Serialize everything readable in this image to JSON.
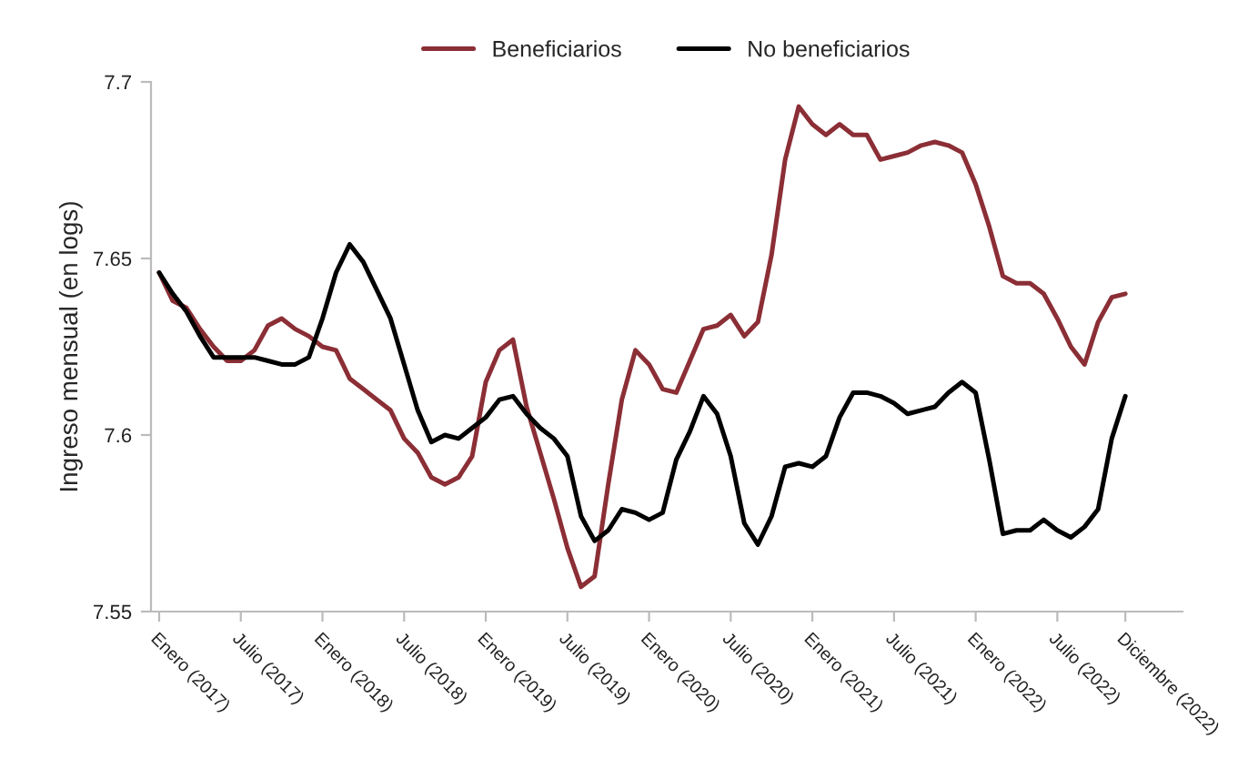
{
  "chart_data": {
    "type": "line",
    "ylabel": "Ingreso mensual (en logs)",
    "categories": [
      "Enero (2017)",
      null,
      null,
      null,
      null,
      null,
      "Julio (2017)",
      null,
      null,
      null,
      null,
      null,
      "Enero (2018)",
      null,
      null,
      null,
      null,
      null,
      "Julio (2018)",
      null,
      null,
      null,
      null,
      null,
      "Enero (2019)",
      null,
      null,
      null,
      null,
      null,
      "Julio (2019)",
      null,
      null,
      null,
      null,
      null,
      "Enero (2020)",
      null,
      null,
      null,
      null,
      null,
      "Julio (2020)",
      null,
      null,
      null,
      null,
      null,
      "Enero (2021)",
      null,
      null,
      null,
      null,
      null,
      "Julio (2021)",
      null,
      null,
      null,
      null,
      null,
      "Enero (2022)",
      null,
      null,
      null,
      null,
      null,
      "Julio (2022)",
      null,
      null,
      null,
      null,
      "Diciembre (2022)"
    ],
    "series": [
      {
        "name": "Beneficiarios",
        "color": "#8b2e35",
        "values": [
          7.646,
          7.638,
          7.636,
          7.63,
          7.625,
          7.621,
          7.621,
          7.624,
          7.631,
          7.633,
          7.63,
          7.628,
          7.625,
          7.624,
          7.616,
          7.613,
          7.61,
          7.607,
          7.599,
          7.595,
          7.588,
          7.586,
          7.588,
          7.594,
          7.615,
          7.624,
          7.627,
          7.608,
          7.595,
          7.582,
          7.568,
          7.557,
          7.56,
          7.586,
          7.61,
          7.624,
          7.62,
          7.613,
          7.612,
          7.621,
          7.63,
          7.631,
          7.634,
          7.628,
          7.632,
          7.651,
          7.678,
          7.693,
          7.688,
          7.685,
          7.688,
          7.685,
          7.685,
          7.678,
          7.679,
          7.68,
          7.682,
          7.683,
          7.682,
          7.68,
          7.671,
          7.659,
          7.645,
          7.643,
          7.643,
          7.64,
          7.633,
          7.625,
          7.62,
          7.632,
          7.639,
          7.64
        ]
      },
      {
        "name": "No beneficiarios",
        "color": "#000000",
        "values": [
          7.646,
          7.64,
          7.635,
          7.628,
          7.622,
          7.622,
          7.622,
          7.622,
          7.621,
          7.62,
          7.62,
          7.622,
          7.633,
          7.646,
          7.654,
          7.649,
          7.641,
          7.633,
          7.62,
          7.607,
          7.598,
          7.6,
          7.599,
          7.602,
          7.605,
          7.61,
          7.611,
          7.606,
          7.602,
          7.599,
          7.594,
          7.577,
          7.57,
          7.573,
          7.579,
          7.578,
          7.576,
          7.578,
          7.593,
          7.601,
          7.611,
          7.606,
          7.594,
          7.575,
          7.569,
          7.577,
          7.591,
          7.592,
          7.591,
          7.594,
          7.605,
          7.612,
          7.612,
          7.611,
          7.609,
          7.606,
          7.607,
          7.608,
          7.612,
          7.615,
          7.612,
          7.593,
          7.572,
          7.573,
          7.573,
          7.576,
          7.573,
          7.571,
          7.574,
          7.579,
          7.599,
          7.611
        ]
      }
    ],
    "ylim": [
      7.55,
      7.7
    ],
    "yticks": [
      7.55,
      7.6,
      7.65,
      7.7
    ],
    "legend": "top",
    "grid": false
  }
}
